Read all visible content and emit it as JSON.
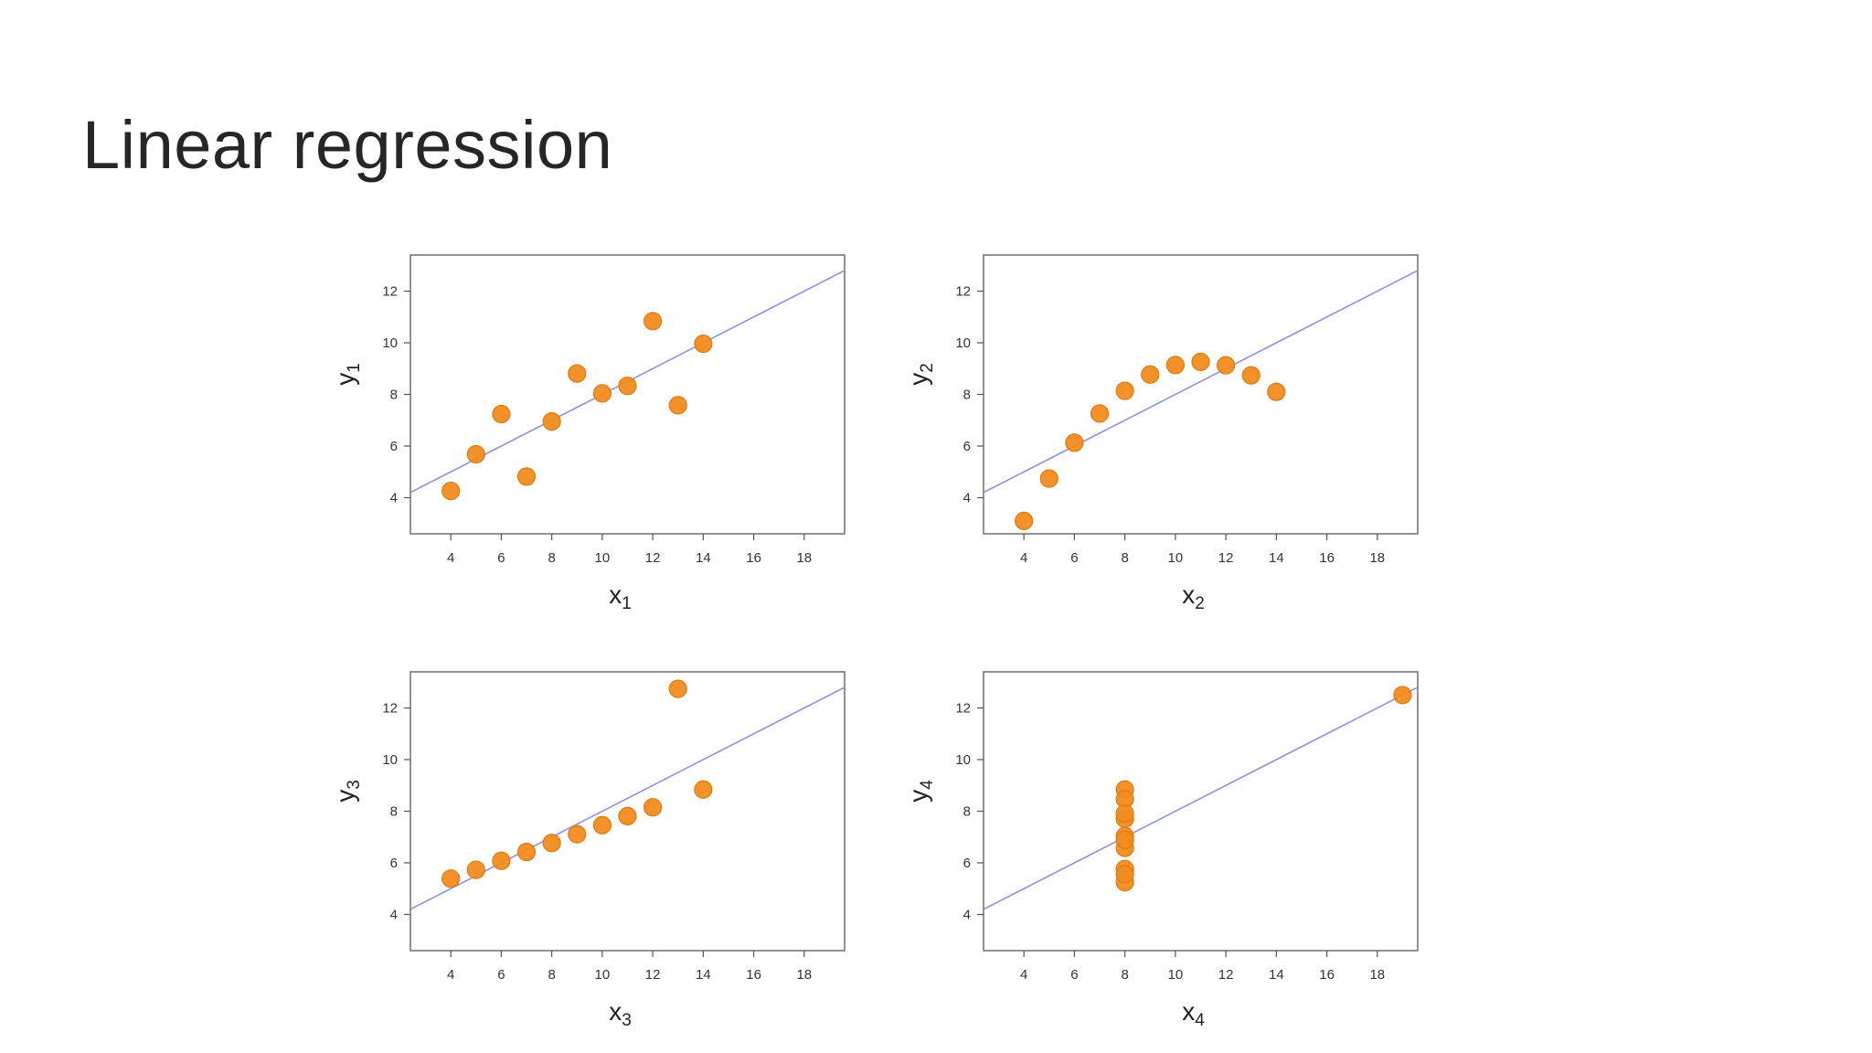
{
  "slide": {
    "title": "Linear regression"
  },
  "colors": {
    "point": "#f28c1e",
    "point_edge": "#de7a0f",
    "fit_line": "#8f8fe0",
    "frame": "#777777"
  },
  "chart_data": [
    {
      "type": "scatter",
      "xlabel": "x",
      "xlabel_sub": "1",
      "ylabel": "y",
      "ylabel_sub": "1",
      "xlim": [
        2.4,
        19.6
      ],
      "ylim": [
        2.6,
        13.4
      ],
      "xticks": [
        4,
        6,
        8,
        10,
        12,
        14,
        16,
        18
      ],
      "yticks": [
        4,
        6,
        8,
        10,
        12
      ],
      "grid": false,
      "fit_line": {
        "intercept": 3.0,
        "slope": 0.5
      },
      "points": [
        {
          "x": 10,
          "y": 8.04
        },
        {
          "x": 8,
          "y": 6.95
        },
        {
          "x": 13,
          "y": 7.58
        },
        {
          "x": 9,
          "y": 8.81
        },
        {
          "x": 11,
          "y": 8.33
        },
        {
          "x": 14,
          "y": 9.96
        },
        {
          "x": 6,
          "y": 7.24
        },
        {
          "x": 4,
          "y": 4.26
        },
        {
          "x": 12,
          "y": 10.84
        },
        {
          "x": 7,
          "y": 4.82
        },
        {
          "x": 5,
          "y": 5.68
        }
      ]
    },
    {
      "type": "scatter",
      "xlabel": "x",
      "xlabel_sub": "2",
      "ylabel": "y",
      "ylabel_sub": "2",
      "xlim": [
        2.4,
        19.6
      ],
      "ylim": [
        2.6,
        13.4
      ],
      "xticks": [
        4,
        6,
        8,
        10,
        12,
        14,
        16,
        18
      ],
      "yticks": [
        4,
        6,
        8,
        10,
        12
      ],
      "grid": false,
      "fit_line": {
        "intercept": 3.0,
        "slope": 0.5
      },
      "points": [
        {
          "x": 10,
          "y": 9.14
        },
        {
          "x": 8,
          "y": 8.14
        },
        {
          "x": 13,
          "y": 8.74
        },
        {
          "x": 9,
          "y": 8.77
        },
        {
          "x": 11,
          "y": 9.26
        },
        {
          "x": 14,
          "y": 8.1
        },
        {
          "x": 6,
          "y": 6.13
        },
        {
          "x": 4,
          "y": 3.1
        },
        {
          "x": 12,
          "y": 9.13
        },
        {
          "x": 7,
          "y": 7.26
        },
        {
          "x": 5,
          "y": 4.74
        }
      ]
    },
    {
      "type": "scatter",
      "xlabel": "x",
      "xlabel_sub": "3",
      "ylabel": "y",
      "ylabel_sub": "3",
      "xlim": [
        2.4,
        19.6
      ],
      "ylim": [
        2.6,
        13.4
      ],
      "xticks": [
        4,
        6,
        8,
        10,
        12,
        14,
        16,
        18
      ],
      "yticks": [
        4,
        6,
        8,
        10,
        12
      ],
      "grid": false,
      "fit_line": {
        "intercept": 3.0,
        "slope": 0.5
      },
      "points": [
        {
          "x": 10,
          "y": 7.46
        },
        {
          "x": 8,
          "y": 6.77
        },
        {
          "x": 13,
          "y": 12.74
        },
        {
          "x": 9,
          "y": 7.11
        },
        {
          "x": 11,
          "y": 7.81
        },
        {
          "x": 14,
          "y": 8.84
        },
        {
          "x": 6,
          "y": 6.08
        },
        {
          "x": 4,
          "y": 5.39
        },
        {
          "x": 12,
          "y": 8.15
        },
        {
          "x": 7,
          "y": 6.42
        },
        {
          "x": 5,
          "y": 5.73
        }
      ]
    },
    {
      "type": "scatter",
      "xlabel": "x",
      "xlabel_sub": "4",
      "ylabel": "y",
      "ylabel_sub": "4",
      "xlim": [
        2.4,
        19.6
      ],
      "ylim": [
        2.6,
        13.4
      ],
      "xticks": [
        4,
        6,
        8,
        10,
        12,
        14,
        16,
        18
      ],
      "yticks": [
        4,
        6,
        8,
        10,
        12
      ],
      "grid": false,
      "fit_line": {
        "intercept": 3.0,
        "slope": 0.5
      },
      "points": [
        {
          "x": 8,
          "y": 6.58
        },
        {
          "x": 8,
          "y": 5.76
        },
        {
          "x": 8,
          "y": 7.71
        },
        {
          "x": 8,
          "y": 8.84
        },
        {
          "x": 8,
          "y": 8.47
        },
        {
          "x": 8,
          "y": 7.04
        },
        {
          "x": 8,
          "y": 5.25
        },
        {
          "x": 19,
          "y": 12.5
        },
        {
          "x": 8,
          "y": 5.56
        },
        {
          "x": 8,
          "y": 7.91
        },
        {
          "x": 8,
          "y": 6.89
        }
      ]
    }
  ]
}
